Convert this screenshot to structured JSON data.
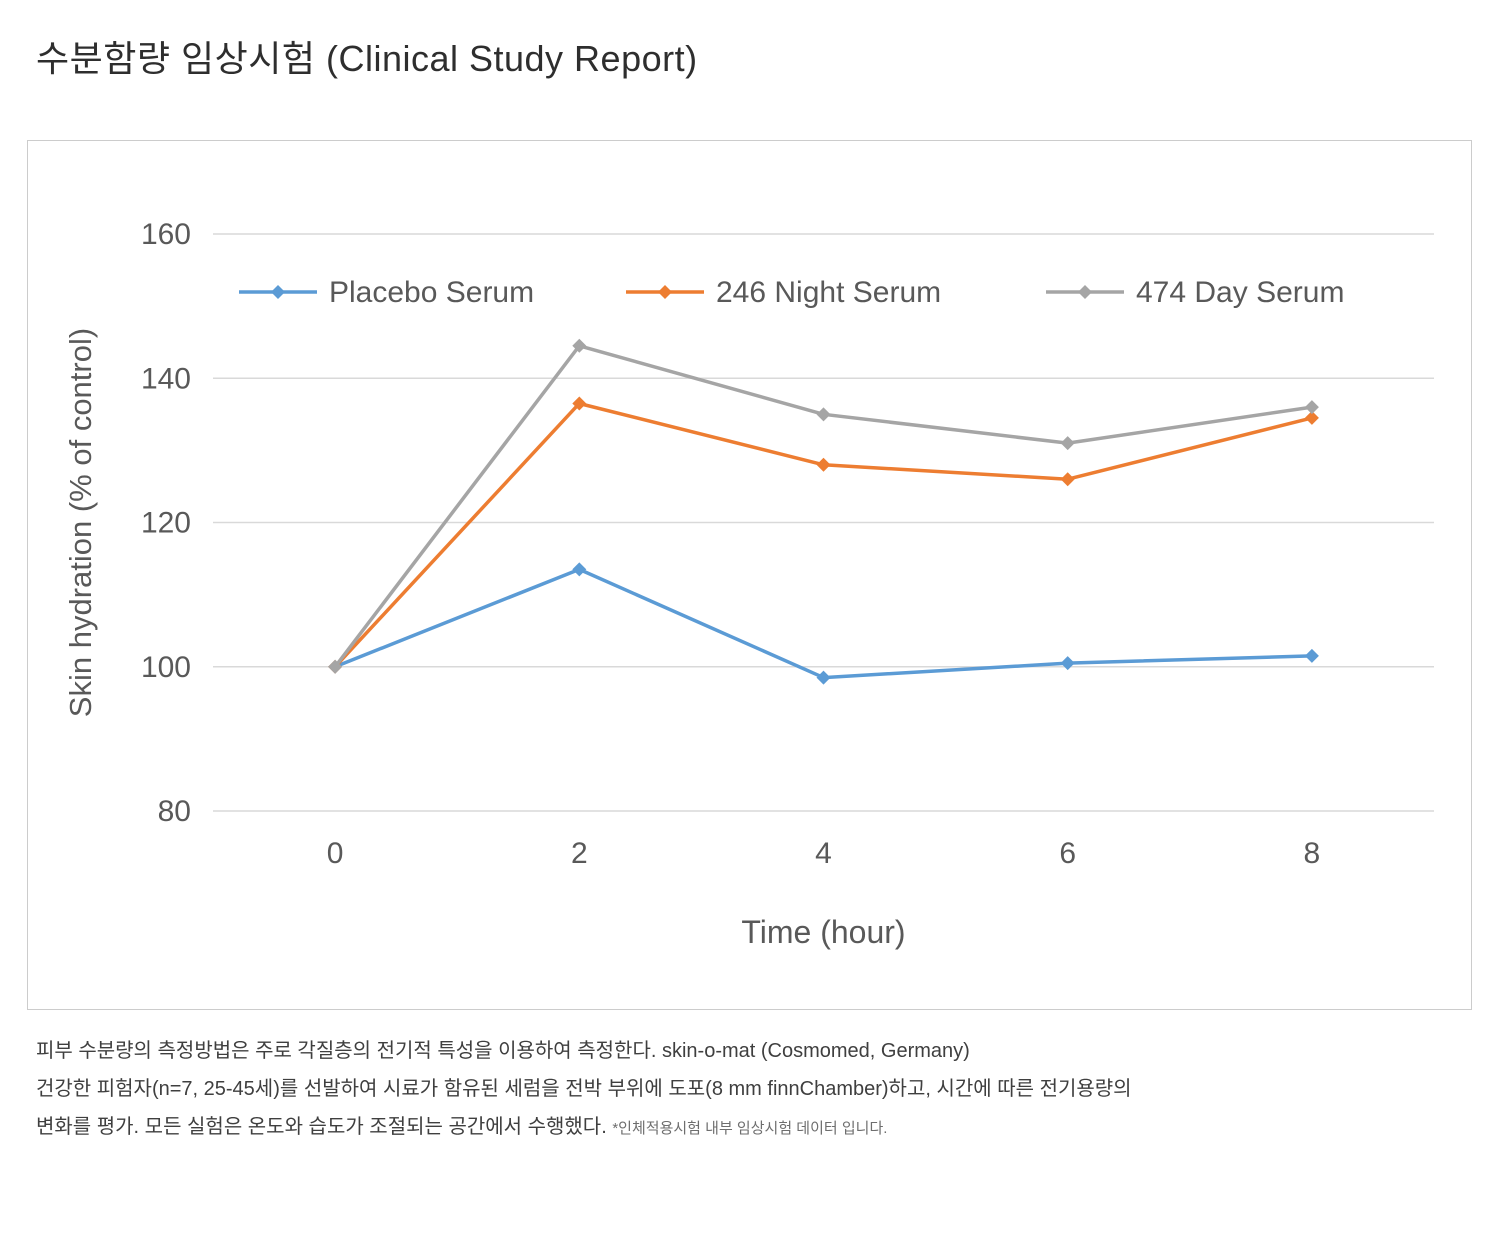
{
  "page": {
    "title": "수분함량 임상시험 (Clinical Study Report)"
  },
  "chart_data": {
    "type": "line",
    "x": [
      0,
      2,
      4,
      6,
      8
    ],
    "xlabel": "Time (hour)",
    "ylabel": "Skin hydration (% of control)",
    "ylim": [
      80,
      160
    ],
    "yticks": [
      80,
      100,
      120,
      140,
      160
    ],
    "grid": true,
    "legend_position": "top-inside",
    "marker": "diamond",
    "series": [
      {
        "name": "Placebo Serum",
        "color": "#5B9BD5",
        "values": [
          100,
          113.5,
          98.5,
          100.5,
          101.5
        ]
      },
      {
        "name": "246 Night Serum",
        "color": "#ED7D31",
        "values": [
          100,
          136.5,
          128,
          126,
          134.5
        ]
      },
      {
        "name": "474 Day Serum",
        "color": "#A5A5A5",
        "values": [
          100,
          144.5,
          135,
          131,
          136
        ]
      }
    ],
    "style": {
      "grid_color": "#d9d9d9",
      "axis_text_color": "#595959",
      "line_width": 3.5
    }
  },
  "footnote": {
    "line1": "피부 수분량의 측정방법은 주로 각질층의 전기적 특성을 이용하여 측정한다. skin-o-mat (Cosmomed, Germany)",
    "line2": "건강한 피험자(n=7, 25-45세)를 선발하여 시료가 함유된 세럼을 전박 부위에 도포(8 mm finnChamber)하고, 시간에 따른 전기용량의",
    "line3": "변화를 평가. 모든 실험은 온도와 습도가 조절되는 공간에서 수행했다.",
    "line3_small": "*인체적용시험 내부 임상시험 데이터 입니다."
  }
}
